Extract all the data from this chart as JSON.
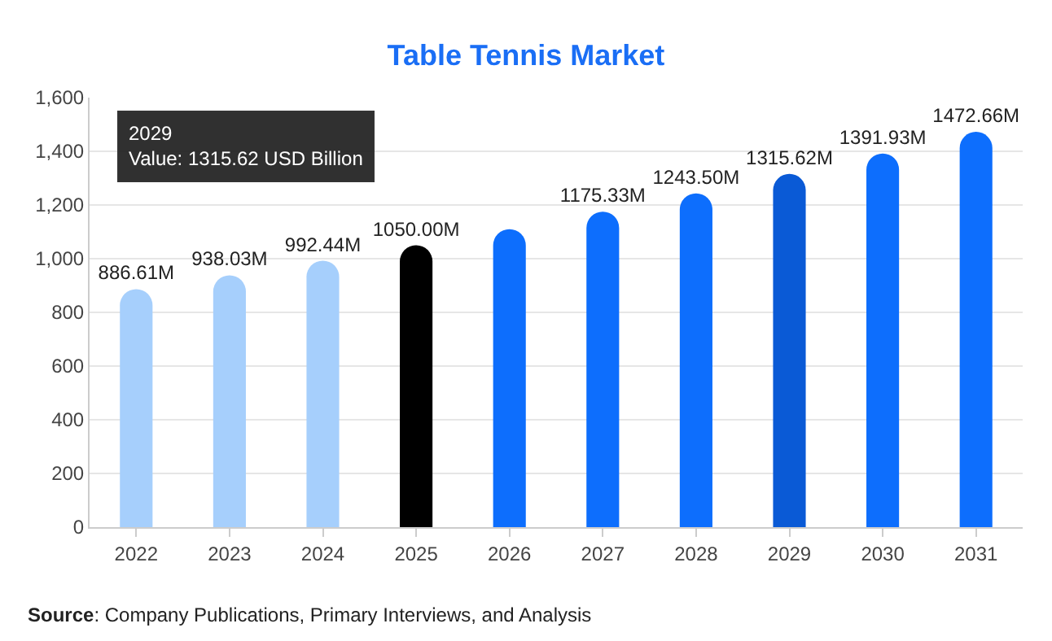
{
  "chart_data": {
    "type": "bar",
    "title": "Table Tennis Market",
    "categories": [
      "2022",
      "2023",
      "2024",
      "2025",
      "2026",
      "2027",
      "2028",
      "2029",
      "2030",
      "2031"
    ],
    "values": [
      886.61,
      938.03,
      992.44,
      1050.0,
      1110,
      1175.33,
      1243.5,
      1315.62,
      1391.93,
      1472.66
    ],
    "value_labels": [
      "886.61M",
      "938.03M",
      "992.44M",
      "1050.00M",
      null,
      "1175.33M",
      "1243.50M",
      "1315.62M",
      "1391.93M",
      "1472.66M"
    ],
    "colors": [
      "#a6cffc",
      "#a6cffc",
      "#a6cffc",
      "#000000",
      "#0d6efd",
      "#0d6efd",
      "#0d6efd",
      "#0a5ad6",
      "#0d6efd",
      "#0d6efd"
    ],
    "ylim": [
      0,
      1600
    ],
    "yticks": [
      0,
      200,
      400,
      600,
      800,
      {
        "value": 1000,
        "label": "1,000"
      },
      {
        "value": 1200,
        "label": "1,200"
      },
      {
        "value": 1400,
        "label": "1,400"
      },
      {
        "value": 1600,
        "label": "1,600"
      }
    ],
    "grid": "y",
    "annotations": [
      "2029\nValue: 1315.62 USD Billion",
      "Source: Company Publications, Primary Interviews, and Analysis"
    ]
  }
}
